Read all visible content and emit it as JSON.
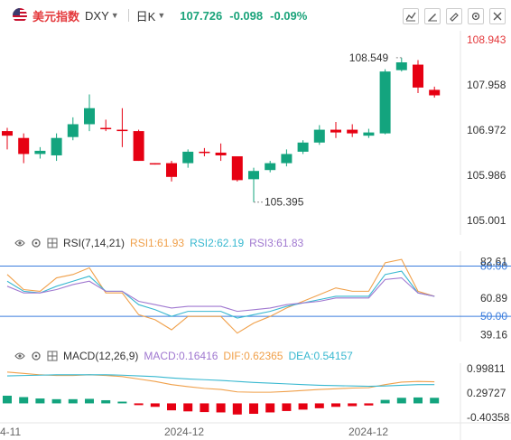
{
  "header": {
    "name": "美元指数",
    "symbol": "DXY",
    "period": "日K",
    "price": "107.726",
    "change": "-0.098",
    "change_pct": "-0.09%"
  },
  "colors": {
    "up": "#e60012",
    "down": "#13a47e",
    "rsi1": "#f0a04a",
    "rsi2": "#38b8d0",
    "rsi3": "#a078d0",
    "ref_line": "#3b7ddd",
    "price_label": "#e4393c"
  },
  "icons": [
    "chart-icon",
    "pen-icon",
    "draw-icon",
    "settings-icon",
    "close-icon"
  ],
  "rsi_header": {
    "label": "RSI(7,14,21)",
    "rsi1": "RSI1:61.93",
    "rsi2": "RSI2:62.19",
    "rsi3": "RSI3:61.83"
  },
  "macd_header": {
    "label": "MACD(12,26,9)",
    "macd": "MACD:0.16416",
    "dif": "DIF:0.62365",
    "dea": "DEA:0.54157"
  },
  "chart_data": [
    {
      "type": "candlestick",
      "title": "美元指数 DXY 日K",
      "ylim": [
        105.0,
        108.943
      ],
      "y_ticks": [
        "108.943",
        "107.958",
        "106.972",
        "105.986",
        "105.001"
      ],
      "annotations": {
        "high": "108.549",
        "low": "105.395"
      },
      "candles": [
        {
          "o": 106.95,
          "h": 107.02,
          "l": 106.55,
          "c": 106.85
        },
        {
          "o": 106.8,
          "h": 106.9,
          "l": 106.25,
          "c": 106.45
        },
        {
          "o": 106.45,
          "h": 106.6,
          "l": 106.35,
          "c": 106.52
        },
        {
          "o": 106.42,
          "h": 106.9,
          "l": 106.3,
          "c": 106.8
        },
        {
          "o": 106.82,
          "h": 107.25,
          "l": 106.75,
          "c": 107.1
        },
        {
          "o": 107.1,
          "h": 107.75,
          "l": 106.95,
          "c": 107.45
        },
        {
          "o": 107.02,
          "h": 107.2,
          "l": 106.95,
          "c": 107.0
        },
        {
          "o": 106.98,
          "h": 107.45,
          "l": 106.6,
          "c": 106.95
        },
        {
          "o": 106.95,
          "h": 106.98,
          "l": 106.3,
          "c": 106.3
        },
        {
          "o": 106.25,
          "h": 106.25,
          "l": 106.22,
          "c": 106.23
        },
        {
          "o": 106.25,
          "h": 106.3,
          "l": 105.85,
          "c": 105.95
        },
        {
          "o": 106.25,
          "h": 106.55,
          "l": 106.15,
          "c": 106.5
        },
        {
          "o": 106.5,
          "h": 106.58,
          "l": 106.4,
          "c": 106.48
        },
        {
          "o": 106.48,
          "h": 106.68,
          "l": 106.3,
          "c": 106.42
        },
        {
          "o": 106.4,
          "h": 106.4,
          "l": 105.85,
          "c": 105.88
        },
        {
          "o": 105.9,
          "h": 106.15,
          "l": 105.4,
          "c": 106.08
        },
        {
          "o": 106.1,
          "h": 106.3,
          "l": 106.05,
          "c": 106.25
        },
        {
          "o": 106.25,
          "h": 106.55,
          "l": 106.18,
          "c": 106.45
        },
        {
          "o": 106.5,
          "h": 106.75,
          "l": 106.45,
          "c": 106.7
        },
        {
          "o": 106.7,
          "h": 107.08,
          "l": 106.65,
          "c": 106.98
        },
        {
          "o": 106.98,
          "h": 107.15,
          "l": 106.8,
          "c": 106.92
        },
        {
          "o": 106.98,
          "h": 107.1,
          "l": 106.82,
          "c": 106.9
        },
        {
          "o": 106.85,
          "h": 107.0,
          "l": 106.8,
          "c": 106.92
        },
        {
          "o": 106.9,
          "h": 108.3,
          "l": 106.88,
          "c": 108.25
        },
        {
          "o": 108.28,
          "h": 108.55,
          "l": 108.25,
          "c": 108.45
        },
        {
          "o": 108.4,
          "h": 108.5,
          "l": 107.78,
          "c": 107.9
        },
        {
          "o": 107.85,
          "h": 107.92,
          "l": 107.68,
          "c": 107.73
        }
      ]
    },
    {
      "type": "line",
      "title": "RSI(7,14,21)",
      "ylim": [
        39.16,
        82.61
      ],
      "y_ticks": [
        "82.61",
        "60.89",
        "39.16"
      ],
      "ref_lines": [
        "80.00",
        "50.00"
      ],
      "series": [
        {
          "name": "RSI1",
          "values": [
            75,
            66,
            65,
            73,
            75,
            79,
            64,
            64,
            51,
            48,
            42,
            50,
            50,
            50,
            40,
            46,
            50,
            55,
            59,
            63,
            67,
            65,
            65,
            82,
            84,
            65,
            62
          ]
        },
        {
          "name": "RSI2",
          "values": [
            71,
            65,
            64,
            68,
            71,
            74,
            65,
            65,
            57,
            54,
            50,
            53,
            53,
            53,
            49,
            51,
            53,
            56,
            58,
            60,
            62,
            62,
            62,
            75,
            77,
            64,
            62
          ]
        },
        {
          "name": "RSI3",
          "values": [
            68,
            64,
            64,
            66,
            69,
            71,
            65,
            65,
            59,
            57,
            55,
            56,
            56,
            56,
            53,
            54,
            55,
            57,
            58,
            59,
            61,
            61,
            61,
            72,
            73,
            64,
            62
          ]
        }
      ]
    },
    {
      "type": "bar",
      "title": "MACD(12,26,9)",
      "ylim": [
        -0.40358,
        0.99811
      ],
      "y_ticks": [
        "0.99811",
        "0.29727",
        "-0.40358"
      ],
      "x_labels": [
        "4-11",
        "2024-12",
        "2024-12"
      ],
      "series": [
        {
          "name": "MACD",
          "values": [
            0.22,
            0.18,
            0.14,
            0.12,
            0.12,
            0.13,
            0.09,
            0.05,
            -0.05,
            -0.1,
            -0.2,
            -0.23,
            -0.25,
            -0.26,
            -0.32,
            -0.3,
            -0.26,
            -0.22,
            -0.18,
            -0.14,
            -0.1,
            -0.08,
            -0.06,
            0.1,
            0.16,
            0.17,
            0.16
          ]
        },
        {
          "name": "DIF",
          "values": [
            0.9,
            0.86,
            0.82,
            0.8,
            0.8,
            0.82,
            0.8,
            0.77,
            0.7,
            0.63,
            0.54,
            0.48,
            0.43,
            0.4,
            0.33,
            0.32,
            0.32,
            0.34,
            0.37,
            0.4,
            0.42,
            0.44,
            0.45,
            0.54,
            0.61,
            0.63,
            0.62
          ]
        },
        {
          "name": "DEA",
          "values": [
            0.79,
            0.8,
            0.81,
            0.82,
            0.82,
            0.82,
            0.82,
            0.81,
            0.79,
            0.77,
            0.73,
            0.7,
            0.68,
            0.66,
            0.63,
            0.6,
            0.58,
            0.56,
            0.54,
            0.52,
            0.51,
            0.5,
            0.49,
            0.5,
            0.52,
            0.54,
            0.54
          ]
        }
      ]
    }
  ]
}
